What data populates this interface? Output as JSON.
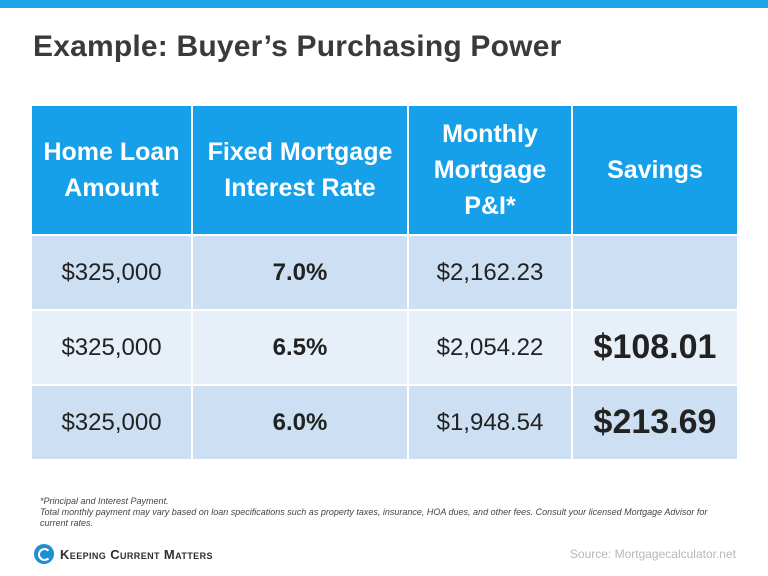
{
  "colors": {
    "accent_blue": "#1da4e8",
    "header_blue": "#16a0ea",
    "row_dark": "#cde0f3",
    "row_light": "#e7eff8",
    "savings_green": "#4a9a38",
    "title_gray": "#3a3a3a"
  },
  "slide": {
    "title": "Example: Buyer’s Purchasing Power"
  },
  "table": {
    "headers": [
      "Home Loan Amount",
      "Fixed Mortgage Interest Rate",
      "Monthly Mortgage P&I*",
      "Savings"
    ],
    "rows": [
      {
        "amount": "$325,000",
        "rate": "7.0%",
        "payment": "$2,162.23",
        "savings": ""
      },
      {
        "amount": "$325,000",
        "rate": "6.5%",
        "payment": "$2,054.22",
        "savings": "$108.01"
      },
      {
        "amount": "$325,000",
        "rate": "6.0%",
        "payment": "$1,948.54",
        "savings": "$213.69"
      }
    ]
  },
  "footnote": {
    "line1": "*Principal and Interest Payment.",
    "line2": "Total monthly payment may vary based on loan specifications such as property taxes, insurance, HOA dues, and other fees. Consult your licensed Mortgage Advisor for current rates."
  },
  "brand": {
    "name": "Keeping Current Matters",
    "logo_icon": "kcm-logo-icon"
  },
  "source": "Source: Mortgagecalculator.net"
}
